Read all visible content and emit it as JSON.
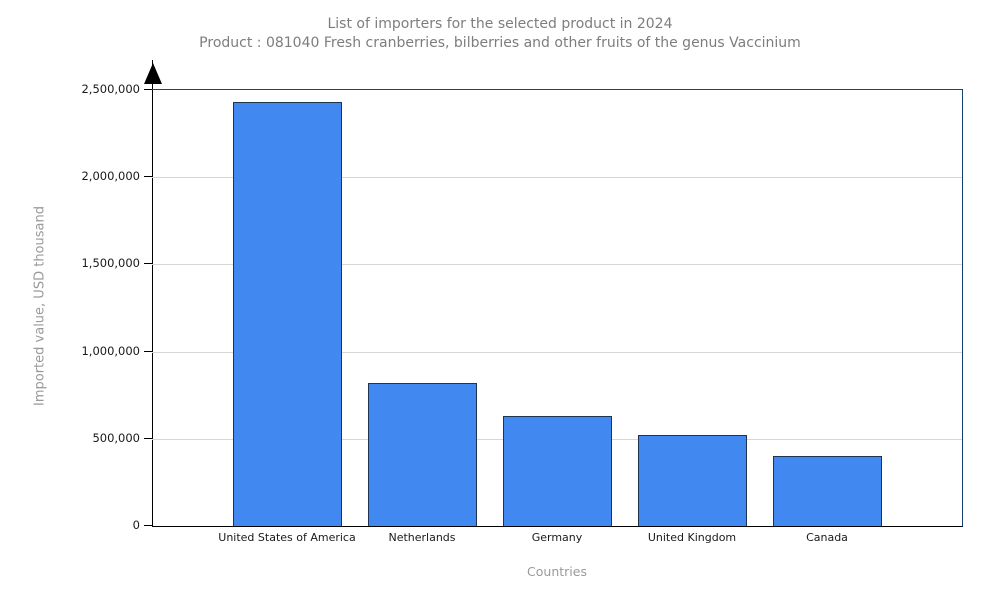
{
  "header": {
    "title": "List of importers for the selected product in 2024",
    "subtitle": "Product : 081040 Fresh cranberries, bilberries and other fruits of the genus Vaccinium"
  },
  "chart_data": {
    "type": "bar",
    "title": "List of importers for the selected product in 2024",
    "subtitle": "Product : 081040 Fresh cranberries, bilberries and other fruits of the genus Vaccinium",
    "categories": [
      "United States of America",
      "Netherlands",
      "Germany",
      "United Kingdom",
      "Canada"
    ],
    "values": [
      2430000,
      818000,
      629000,
      523000,
      400000
    ],
    "xlabel": "Countries",
    "ylabel": "Imported value, USD thousand",
    "ylim": [
      0,
      2500000
    ],
    "ytick_interval": 500000,
    "ytick_labels": [
      "0",
      "500,000",
      "1,000,000",
      "1,500,000",
      "2,000,000",
      "2,500,000"
    ],
    "grid": true,
    "legend": "none",
    "colors": {
      "bar_fill": "#4189f0",
      "bar_border": "#1f3450",
      "plot_border": "#17436f",
      "gridline": "#d6d6d6",
      "axis": "#000000",
      "title_text": "#7d7d7d",
      "axis_title_text": "#9a9a9a",
      "tick_text": "#1a1a1a"
    }
  }
}
